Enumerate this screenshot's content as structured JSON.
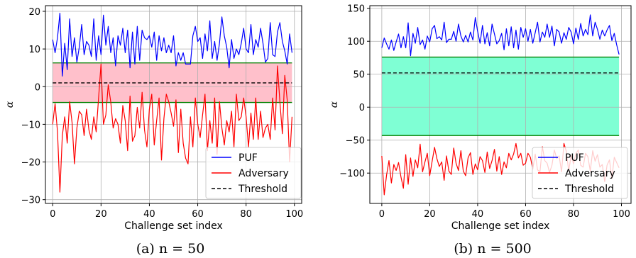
{
  "chart_data": [
    {
      "type": "line",
      "caption": "(a) n = 50",
      "xlabel": "Challenge set index",
      "ylabel": "α",
      "xlim": [
        -3,
        103
      ],
      "ylim": [
        -31,
        21.5
      ],
      "xticks": [
        0,
        20,
        40,
        60,
        80,
        100
      ],
      "yticks": [
        -30,
        -20,
        -10,
        0,
        10,
        20
      ],
      "grid": true,
      "legend_position": "lower-right",
      "band": {
        "lower": -4.2,
        "upper": 6.3,
        "color": "#ffc0cb",
        "edge_color": "#008000"
      },
      "threshold": 1.0,
      "x": "0..99",
      "series": [
        {
          "name": "PUF",
          "color": "#0000ff",
          "style": "solid",
          "values": [
            12.5,
            9.0,
            13.0,
            19.5,
            2.8,
            11.5,
            4.5,
            18.0,
            8.0,
            13.0,
            6.5,
            10.5,
            16.5,
            8.5,
            12.0,
            11.0,
            8.0,
            18.0,
            7.0,
            13.5,
            8.5,
            19.0,
            11.0,
            16.0,
            9.0,
            13.0,
            5.5,
            13.5,
            11.0,
            15.5,
            9.0,
            15.0,
            5.0,
            14.5,
            6.0,
            16.0,
            7.0,
            15.0,
            13.0,
            12.5,
            13.5,
            10.5,
            14.5,
            7.0,
            13.5,
            9.5,
            13.0,
            9.0,
            11.0,
            9.0,
            13.5,
            5.5,
            9.0,
            7.0,
            9.0,
            6.0,
            6.0,
            6.0,
            13.5,
            16.0,
            12.0,
            13.0,
            7.5,
            14.0,
            9.5,
            17.5,
            7.5,
            12.0,
            7.0,
            11.5,
            18.5,
            13.5,
            10.5,
            5.0,
            12.5,
            7.5,
            10.0,
            8.5,
            11.5,
            15.5,
            10.0,
            9.0,
            16.5,
            8.5,
            12.5,
            10.5,
            15.5,
            11.5,
            6.5,
            7.5,
            17.0,
            8.5,
            8.0,
            14.5,
            17.0,
            12.0,
            9.5,
            6.0,
            14.0,
            9.0
          ]
        },
        {
          "name": "Adversary",
          "color": "#ff0000",
          "style": "solid",
          "values": [
            -10.0,
            -4.5,
            -12.0,
            -28.0,
            -13.0,
            -8.0,
            -15.0,
            -4.0,
            -9.5,
            -20.5,
            -11.0,
            -6.5,
            -7.5,
            -13.0,
            -6.0,
            -11.5,
            -14.0,
            -8.0,
            -12.0,
            -3.0,
            6.0,
            -10.0,
            -7.5,
            0.5,
            -4.0,
            -11.0,
            -8.5,
            -10.0,
            -15.0,
            -5.0,
            -9.0,
            -17.0,
            -2.5,
            -14.5,
            -13.0,
            -5.5,
            -11.0,
            -1.5,
            -11.5,
            -16.0,
            -6.0,
            -2.0,
            -15.5,
            -9.0,
            -3.0,
            -19.5,
            -8.5,
            -2.0,
            -4.0,
            -7.0,
            -10.5,
            -3.5,
            -17.5,
            -6.0,
            -15.0,
            -19.0,
            -20.5,
            -8.0,
            -16.0,
            -3.0,
            -10.0,
            -13.5,
            -7.5,
            -2.0,
            -17.0,
            -9.0,
            -15.0,
            -3.0,
            -18.0,
            -4.0,
            -11.0,
            -15.5,
            -9.0,
            -12.0,
            -6.5,
            -16.0,
            -2.0,
            -9.0,
            -8.0,
            -3.0,
            -8.0,
            -16.0,
            -7.0,
            -14.0,
            -3.0,
            -14.0,
            -6.5,
            -13.5,
            -11.0,
            -10.0,
            -14.0,
            -3.0,
            -11.5,
            5.5,
            -4.0,
            -12.5,
            3.0,
            -3.5,
            -20.0,
            -8.0
          ]
        },
        {
          "name": "Threshold",
          "color": "#000000",
          "style": "dashed",
          "values": "constant"
        }
      ]
    },
    {
      "type": "line",
      "caption": "(b) n = 500",
      "xlabel": "Challenge set index",
      "ylabel": "α",
      "xlim": [
        -5,
        104
      ],
      "ylim": [
        -146,
        154
      ],
      "xticks": [
        0,
        20,
        40,
        60,
        80,
        100
      ],
      "yticks": [
        -100,
        -50,
        0,
        50,
        100,
        150
      ],
      "grid": true,
      "legend_position": "lower-right",
      "band": {
        "lower": -43,
        "upper": 76,
        "color": "#7fffd4",
        "edge_color": "#008000"
      },
      "threshold": 52,
      "x": "0..99",
      "series": [
        {
          "name": "PUF",
          "color": "#0000ff",
          "style": "solid",
          "values": [
            90,
            105,
            96,
            88,
            102,
            86,
            99,
            111,
            90,
            107,
            90,
            128,
            78,
            112,
            97,
            121,
            95,
            102,
            88,
            108,
            99,
            119,
            124,
            104,
            107,
            102,
            129,
            98,
            103,
            103,
            115,
            100,
            126,
            108,
            99,
            109,
            99,
            114,
            102,
            136,
            115,
            97,
            124,
            96,
            113,
            93,
            126,
            111,
            96,
            101,
            112,
            87,
            119,
            93,
            122,
            90,
            117,
            88,
            121,
            106,
            119,
            100,
            118,
            97,
            113,
            129,
            99,
            114,
            106,
            126,
            106,
            123,
            93,
            118,
            114,
            97,
            113,
            103,
            121,
            114,
            96,
            120,
            103,
            127,
            108,
            118,
            110,
            140,
            108,
            129,
            118,
            103,
            117,
            108,
            117,
            124,
            101,
            112,
            95,
            80
          ]
        },
        {
          "name": "Adversary",
          "color": "#ff0000",
          "style": "solid",
          "values": [
            -74,
            -133,
            -103,
            -81,
            -115,
            -87,
            -96,
            -84,
            -106,
            -123,
            -72,
            -117,
            -77,
            -105,
            -80,
            -92,
            -56,
            -98,
            -83,
            -70,
            -104,
            -82,
            -61,
            -78,
            -90,
            -83,
            -111,
            -74,
            -97,
            -102,
            -62,
            -85,
            -96,
            -66,
            -97,
            -104,
            -77,
            -69,
            -102,
            -86,
            -95,
            -75,
            -81,
            -99,
            -68,
            -93,
            -81,
            -64,
            -97,
            -75,
            -102,
            -83,
            -92,
            -70,
            -80,
            -71,
            -55,
            -77,
            -70,
            -88,
            -85,
            -70,
            -76,
            -94,
            -71,
            -95,
            -98,
            -60,
            -81,
            -85,
            -99,
            -88,
            -65,
            -78,
            -74,
            -98,
            -55,
            -67,
            -97,
            -73,
            -86,
            -70,
            -65,
            -88,
            -91,
            -70,
            -75,
            -97,
            -66,
            -82,
            -72,
            -91,
            -87,
            -113,
            -88,
            -80,
            -108,
            -76,
            -84,
            -92
          ]
        },
        {
          "name": "Threshold",
          "color": "#000000",
          "style": "dashed",
          "values": "constant"
        }
      ]
    }
  ]
}
